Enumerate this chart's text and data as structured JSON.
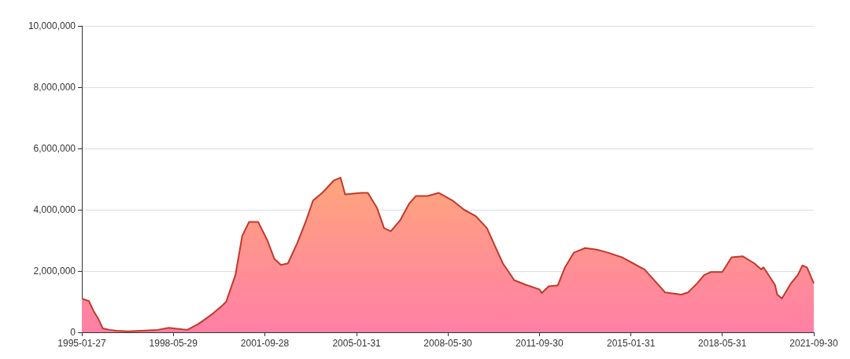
{
  "chart_data": {
    "type": "area",
    "x": [
      "1995-01-27",
      "1995-05",
      "1995-07",
      "1995-09",
      "1995-11",
      "1996-02",
      "1996-05",
      "1996-10",
      "1997-04",
      "1997-11",
      "1998-04",
      "1998-06",
      "1998-12",
      "1999-05",
      "1999-11",
      "2000-03",
      "2000-05",
      "2000-09",
      "2000-12",
      "2001-03",
      "2001-07",
      "2001-11",
      "2002-02",
      "2002-05",
      "2002-08",
      "2002-12",
      "2003-04",
      "2003-07",
      "2003-11",
      "2004-04",
      "2004-07",
      "2004-09",
      "2005-04",
      "2005-07",
      "2005-11",
      "2006-02",
      "2006-05",
      "2006-09",
      "2007-01",
      "2007-04",
      "2007-09",
      "2008-02",
      "2008-08",
      "2009-01",
      "2009-06",
      "2009-11",
      "2010-02",
      "2010-06",
      "2010-11",
      "2011-04",
      "2011-10",
      "2011-11",
      "2012-02",
      "2012-06",
      "2012-09",
      "2013-01",
      "2013-06",
      "2013-11",
      "2014-04",
      "2014-10",
      "2015-03",
      "2015-08",
      "2016-02",
      "2016-05",
      "2016-12",
      "2017-03",
      "2017-07",
      "2017-10",
      "2018-01",
      "2018-06",
      "2018-10",
      "2019-03",
      "2019-08",
      "2019-11",
      "2019-12",
      "2020-05",
      "2020-06",
      "2020-08",
      "2020-12",
      "2021-03",
      "2021-05",
      "2021-07",
      "2021-09-30"
    ],
    "series": [
      {
        "color": "#c0392b",
        "values": [
          1100000,
          1020000,
          700000,
          450000,
          130000,
          80000,
          50000,
          30000,
          50000,
          80000,
          150000,
          130000,
          80000,
          280000,
          600000,
          850000,
          1000000,
          1870000,
          3150000,
          3600000,
          3600000,
          3000000,
          2400000,
          2200000,
          2250000,
          2900000,
          3650000,
          4300000,
          4550000,
          4950000,
          5050000,
          4500000,
          4550000,
          4550000,
          4050000,
          3400000,
          3300000,
          3650000,
          4200000,
          4450000,
          4450000,
          4550000,
          4300000,
          4000000,
          3800000,
          3400000,
          2900000,
          2250000,
          1700000,
          1550000,
          1400000,
          1280000,
          1500000,
          1530000,
          2100000,
          2600000,
          2750000,
          2700000,
          2600000,
          2450000,
          2250000,
          2050000,
          1550000,
          1300000,
          1230000,
          1300000,
          1600000,
          1870000,
          1970000,
          1970000,
          2450000,
          2480000,
          2250000,
          2050000,
          2120000,
          1550000,
          1230000,
          1100000,
          1600000,
          1870000,
          2180000,
          2120000,
          1600000
        ]
      }
    ],
    "xlim": [
      "1995-01-27",
      "2021-09-30"
    ],
    "xticks": [
      "1995-01-27",
      "1998-05-29",
      "2001-09-28",
      "2005-01-31",
      "2008-05-30",
      "2011-09-30",
      "2015-01-31",
      "2018-05-31",
      "2021-09-30"
    ],
    "ylim": [
      0,
      10000000
    ],
    "yticks": [
      {
        "value": 0,
        "label": "0"
      },
      {
        "value": 2000000,
        "label": "2,000,000"
      },
      {
        "value": 4000000,
        "label": "4,000,000"
      },
      {
        "value": 6000000,
        "label": "6,000,000"
      },
      {
        "value": 8000000,
        "label": "8,000,000"
      },
      {
        "value": 10000000,
        "label": "10,000,000"
      }
    ],
    "grid": "y",
    "marker": "none",
    "line_style": "solid"
  }
}
